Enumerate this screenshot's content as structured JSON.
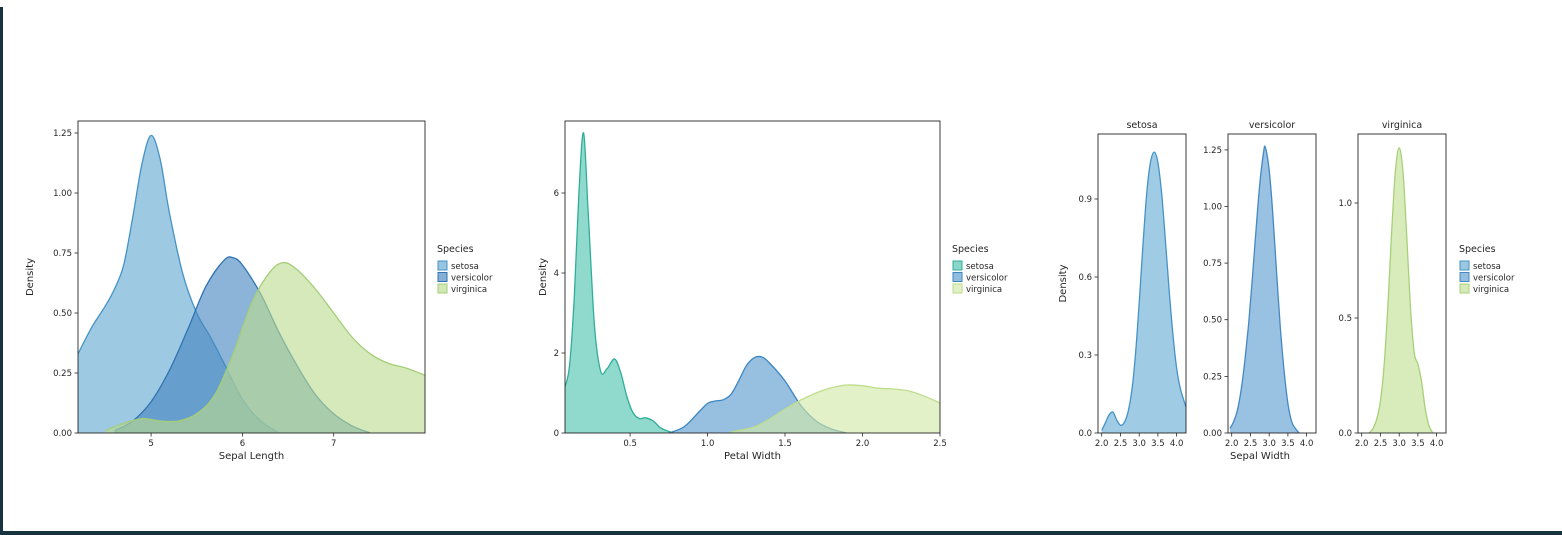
{
  "figure": {
    "frame_color": "#17333f",
    "background": "#ffffff",
    "text_color": "#262626"
  },
  "chart_data": [
    {
      "id": "sepal_length_kde",
      "type": "area",
      "title": "",
      "xlabel": "Sepal Length",
      "ylabel": "Density",
      "xlim": [
        4.2,
        8.0
      ],
      "ylim": [
        0,
        1.3
      ],
      "xticks": [
        5,
        6,
        7
      ],
      "xtick_labels": [
        "5",
        "6",
        "7"
      ],
      "yticks": [
        0,
        0.25,
        0.5,
        0.75,
        1.0,
        1.25
      ],
      "ytick_labels": [
        "0.00",
        "0.25",
        "0.50",
        "0.75",
        "1.00",
        "1.25"
      ],
      "grid": false,
      "legend": {
        "title": "Species",
        "position": "right",
        "labels": [
          "setosa",
          "versicolor",
          "virginica"
        ]
      },
      "series": [
        {
          "name": "setosa",
          "fill": "#61a8d0",
          "line": "#4593c6",
          "x": [
            4.2,
            4.35,
            4.5,
            4.6,
            4.7,
            4.8,
            4.9,
            5.0,
            5.1,
            5.2,
            5.35,
            5.5,
            5.65,
            5.8,
            6.0,
            6.2,
            6.4
          ],
          "y": [
            0.33,
            0.44,
            0.53,
            0.6,
            0.7,
            0.9,
            1.12,
            1.24,
            1.14,
            0.92,
            0.66,
            0.5,
            0.4,
            0.29,
            0.14,
            0.05,
            0.0
          ]
        },
        {
          "name": "versicolor",
          "fill": "#4486c0",
          "line": "#3173b3",
          "x": [
            4.6,
            4.8,
            5.0,
            5.2,
            5.4,
            5.6,
            5.8,
            5.9,
            6.0,
            6.2,
            6.4,
            6.6,
            6.8,
            7.0,
            7.2,
            7.4
          ],
          "y": [
            0.01,
            0.05,
            0.13,
            0.26,
            0.43,
            0.61,
            0.72,
            0.73,
            0.7,
            0.58,
            0.42,
            0.28,
            0.16,
            0.08,
            0.03,
            0.0
          ]
        },
        {
          "name": "virginica",
          "fill": "#bbdc90",
          "line": "#a5ce77",
          "x": [
            4.5,
            4.7,
            4.9,
            5.1,
            5.3,
            5.5,
            5.7,
            5.9,
            6.1,
            6.3,
            6.45,
            6.6,
            6.8,
            7.0,
            7.2,
            7.4,
            7.6,
            7.8,
            8.0
          ],
          "y": [
            0.01,
            0.04,
            0.06,
            0.05,
            0.05,
            0.08,
            0.16,
            0.33,
            0.54,
            0.67,
            0.71,
            0.68,
            0.6,
            0.5,
            0.4,
            0.33,
            0.29,
            0.27,
            0.24
          ]
        }
      ]
    },
    {
      "id": "petal_width_kde",
      "type": "area",
      "title": "",
      "xlabel": "Petal Width",
      "ylabel": "Density",
      "xlim": [
        0.08,
        2.5
      ],
      "ylim": [
        0,
        7.8
      ],
      "xticks": [
        0.5,
        1.0,
        1.5,
        2.0,
        2.5
      ],
      "xtick_labels": [
        "0.5",
        "1.0",
        "1.5",
        "2.0",
        "2.5"
      ],
      "yticks": [
        0,
        2,
        4,
        6
      ],
      "ytick_labels": [
        "0",
        "2",
        "4",
        "6"
      ],
      "grid": false,
      "legend": {
        "title": "Species",
        "position": "right",
        "labels": [
          "setosa",
          "versicolor",
          "virginica"
        ]
      },
      "series": [
        {
          "name": "setosa",
          "fill": "#4cc2ae",
          "line": "#2fae99",
          "x": [
            0.08,
            0.11,
            0.14,
            0.17,
            0.2,
            0.23,
            0.27,
            0.31,
            0.35,
            0.4,
            0.44,
            0.48,
            0.52,
            0.56,
            0.6,
            0.65,
            0.7,
            0.78
          ],
          "y": [
            1.15,
            1.7,
            3.4,
            6.0,
            7.5,
            5.5,
            2.7,
            1.55,
            1.6,
            1.85,
            1.5,
            0.9,
            0.5,
            0.36,
            0.38,
            0.3,
            0.12,
            0.0
          ]
        },
        {
          "name": "versicolor",
          "fill": "#5598cd",
          "line": "#3c86c2",
          "x": [
            0.75,
            0.85,
            0.95,
            1.0,
            1.05,
            1.1,
            1.15,
            1.2,
            1.25,
            1.3,
            1.35,
            1.4,
            1.5,
            1.6,
            1.7,
            1.8,
            1.9
          ],
          "y": [
            0.0,
            0.16,
            0.55,
            0.74,
            0.8,
            0.83,
            0.96,
            1.3,
            1.68,
            1.88,
            1.9,
            1.75,
            1.3,
            0.7,
            0.3,
            0.1,
            0.0
          ]
        },
        {
          "name": "virginica",
          "fill": "#d2e8a6",
          "line": "#bedd8a",
          "x": [
            1.15,
            1.3,
            1.4,
            1.5,
            1.6,
            1.7,
            1.8,
            1.9,
            2.0,
            2.1,
            2.2,
            2.3,
            2.4,
            2.5
          ],
          "y": [
            0.02,
            0.15,
            0.35,
            0.6,
            0.82,
            1.0,
            1.13,
            1.2,
            1.18,
            1.12,
            1.1,
            1.05,
            0.92,
            0.75
          ]
        }
      ]
    },
    {
      "id": "sepal_width_by_species",
      "type": "area",
      "title": "",
      "xlabel": "Sepal Width",
      "ylabel": "Density",
      "xlim": [
        1.9,
        4.25
      ],
      "xticks": [
        2.0,
        2.5,
        3.0,
        3.5,
        4.0
      ],
      "xtick_labels": [
        "2.0",
        "2.5",
        "3.0",
        "3.5",
        "4.0"
      ],
      "grid": false,
      "legend": {
        "title": "Species",
        "position": "right",
        "labels": [
          "setosa",
          "versicolor",
          "virginica"
        ]
      },
      "facets": [
        {
          "title": "setosa",
          "ylim": [
            0,
            1.15
          ],
          "yticks": [
            0,
            0.3,
            0.6,
            0.9
          ],
          "ytick_labels": [
            "0.0",
            "0.3",
            "0.6",
            "0.9"
          ],
          "series": {
            "name": "setosa",
            "fill": "#64abd4",
            "line": "#4593c6",
            "x": [
              2.0,
              2.1,
              2.2,
              2.3,
              2.4,
              2.5,
              2.6,
              2.7,
              2.8,
              2.9,
              3.0,
              3.1,
              3.2,
              3.3,
              3.4,
              3.5,
              3.6,
              3.7,
              3.8,
              3.9,
              4.0,
              4.1,
              4.25
            ],
            "y": [
              0.01,
              0.04,
              0.07,
              0.08,
              0.05,
              0.03,
              0.04,
              0.08,
              0.16,
              0.3,
              0.5,
              0.72,
              0.92,
              1.04,
              1.08,
              1.04,
              0.92,
              0.74,
              0.55,
              0.38,
              0.25,
              0.17,
              0.1
            ]
          }
        },
        {
          "title": "versicolor",
          "ylim": [
            0,
            1.32
          ],
          "yticks": [
            0,
            0.25,
            0.5,
            0.75,
            1.0,
            1.25
          ],
          "ytick_labels": [
            "0.00",
            "0.25",
            "0.50",
            "0.75",
            "1.00",
            "1.25"
          ],
          "series": {
            "name": "versicolor",
            "fill": "#5a9bd0",
            "line": "#4488c4",
            "x": [
              1.95,
              2.05,
              2.15,
              2.25,
              2.35,
              2.45,
              2.55,
              2.65,
              2.75,
              2.85,
              2.9,
              3.0,
              3.1,
              3.2,
              3.3,
              3.4,
              3.5,
              3.6,
              3.7,
              3.8
            ],
            "y": [
              0.02,
              0.05,
              0.1,
              0.19,
              0.32,
              0.48,
              0.68,
              0.9,
              1.1,
              1.24,
              1.26,
              1.16,
              0.96,
              0.7,
              0.46,
              0.27,
              0.13,
              0.05,
              0.02,
              0.0
            ]
          }
        },
        {
          "title": "virginica",
          "ylim": [
            0,
            1.3
          ],
          "yticks": [
            0,
            0.5,
            1.0
          ],
          "ytick_labels": [
            "0.0",
            "0.5",
            "1.0"
          ],
          "series": {
            "name": "virginica",
            "fill": "#bedf92",
            "line": "#a8d079",
            "x": [
              2.2,
              2.3,
              2.4,
              2.5,
              2.6,
              2.7,
              2.8,
              2.9,
              3.0,
              3.1,
              3.2,
              3.3,
              3.4,
              3.5,
              3.6,
              3.7,
              3.8,
              3.9
            ],
            "y": [
              0.0,
              0.02,
              0.06,
              0.14,
              0.3,
              0.56,
              0.88,
              1.14,
              1.24,
              1.14,
              0.86,
              0.55,
              0.35,
              0.3,
              0.22,
              0.1,
              0.03,
              0.0
            ]
          }
        }
      ]
    }
  ]
}
